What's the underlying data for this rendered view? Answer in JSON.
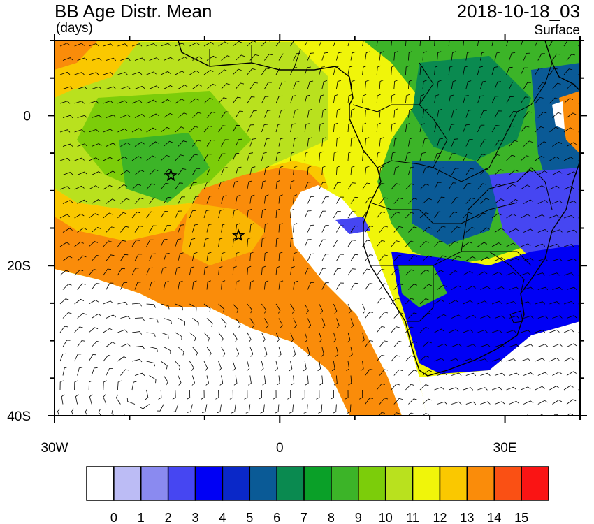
{
  "header": {
    "title": "BB Age Distr. Mean",
    "units": "(days)",
    "datetime": "2018-10-18_03",
    "level": "Surface"
  },
  "axes": {
    "x_ticks": [
      {
        "label": "30W",
        "lon": -30
      },
      {
        "label": "0",
        "lon": 0
      },
      {
        "label": "30E",
        "lon": 30
      }
    ],
    "y_ticks": [
      {
        "label": "0",
        "lat": 0
      },
      {
        "label": "20S",
        "lat": -20
      },
      {
        "label": "40S",
        "lat": -40
      }
    ],
    "lon_range": [
      -30,
      40
    ],
    "lat_range": [
      -40,
      10
    ]
  },
  "colorbar": {
    "colors": [
      "#ffffff",
      "#bcbcf5",
      "#8a8af0",
      "#4646f2",
      "#0000f5",
      "#0a28c8",
      "#0a5a96",
      "#0a8a50",
      "#0aa028",
      "#3cb428",
      "#7ccd0a",
      "#b9e11e",
      "#f0f50a",
      "#fac800",
      "#fa8c0a",
      "#fa5014",
      "#fa1414"
    ],
    "labels": [
      "0",
      "1",
      "2",
      "3",
      "4",
      "5",
      "6",
      "7",
      "8",
      "9",
      "10",
      "11",
      "12",
      "13",
      "14",
      "15"
    ]
  },
  "markers": [
    {
      "name": "star-marker-1",
      "lon": -14.5,
      "lat": -8
    },
    {
      "name": "star-marker-2",
      "lon": -5.5,
      "lat": -16
    }
  ]
}
